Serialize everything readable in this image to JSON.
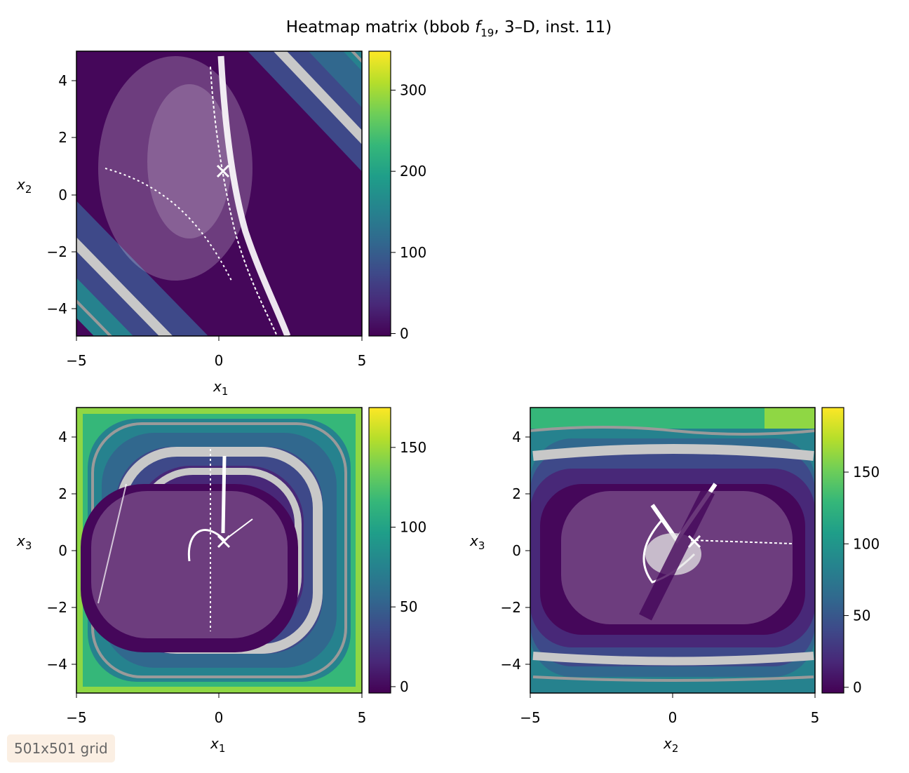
{
  "chart_data": {
    "type": "heatmap",
    "title_main": "Heatmap matrix (bbob ",
    "title_f": "f",
    "title_sub": "19",
    "title_rest": ", 3–D, inst. 11)",
    "optimum": {
      "x1": 0.15,
      "x2": 0.8,
      "x3": 0.35
    },
    "panels": [
      {
        "id": "x1-x2",
        "xvar": "x",
        "xsub": "1",
        "yvar": "x",
        "ysub": "2",
        "xlim": [
          -5,
          5
        ],
        "ylim": [
          -5,
          5
        ],
        "xticks": [
          "−5",
          "0",
          "5"
        ],
        "yticks": [
          "4",
          "2",
          "0",
          "−2",
          "−4"
        ],
        "colorbar": {
          "min": -3,
          "max": 348,
          "ticks": [
            0,
            100,
            200,
            300
          ]
        },
        "marker": [
          0.15,
          0.8
        ]
      },
      {
        "id": "x1-x3",
        "xvar": "x",
        "xsub": "1",
        "yvar": "x",
        "ysub": "3",
        "xlim": [
          -5,
          5
        ],
        "ylim": [
          -5,
          5
        ],
        "xticks": [
          "−5",
          "0",
          "5"
        ],
        "yticks": [
          "4",
          "2",
          "0",
          "−2",
          "−4"
        ],
        "colorbar": {
          "min": -4,
          "max": 175,
          "ticks": [
            0,
            50,
            100,
            150
          ]
        },
        "marker": [
          0.15,
          0.35
        ]
      },
      {
        "id": "x2-x3",
        "xvar": "x",
        "xsub": "2",
        "yvar": "x",
        "ysub": "3",
        "xlim": [
          -5,
          5
        ],
        "ylim": [
          -5,
          5
        ],
        "xticks": [
          "−5",
          "0",
          "5"
        ],
        "yticks": [
          "4",
          "2",
          "0",
          "−2",
          "−4"
        ],
        "colorbar": {
          "min": -4,
          "max": 195,
          "ticks": [
            0,
            50,
            100,
            150
          ]
        },
        "marker": [
          0.8,
          0.35
        ]
      }
    ],
    "grid_note": "501x501 grid"
  },
  "colors": {
    "viridis": [
      "#440154",
      "#482878",
      "#3e4989",
      "#31688e",
      "#26828e",
      "#1f9e89",
      "#35b779",
      "#6ece58",
      "#b5de2b",
      "#fde725"
    ],
    "contour_gray": "#bdbdbd",
    "marker": "#ffffff"
  }
}
